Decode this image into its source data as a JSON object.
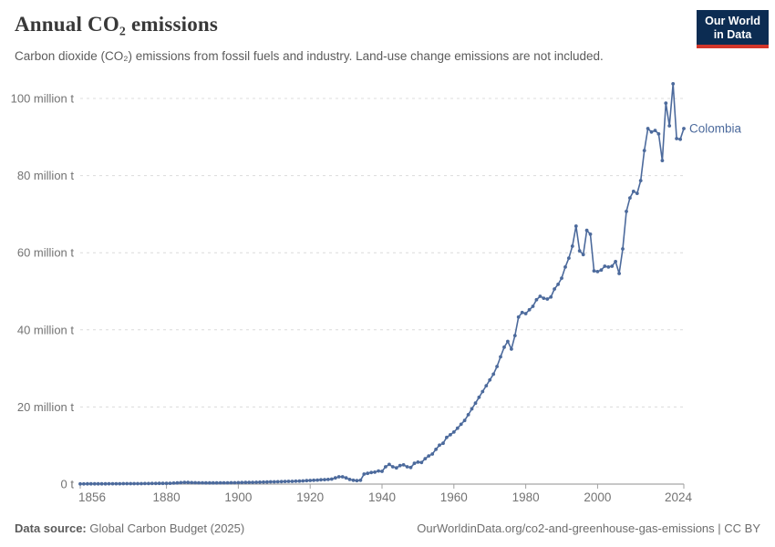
{
  "header": {
    "title": "Annual CO₂ emissions",
    "subtitle": "Carbon dioxide (CO₂) emissions from fossil fuels and industry. Land-use change emissions are not included."
  },
  "logo": {
    "line1": "Our World",
    "line2": "in Data",
    "bg_color": "#0C2C52",
    "accent_color": "#D2352A"
  },
  "footer": {
    "datasource_label": "Data source:",
    "datasource_value": "Global Carbon Budget (2025)",
    "citation": "OurWorldinData.org/co2-and-greenhouse-gas-emissions | CC BY"
  },
  "chart_data": {
    "type": "line",
    "title": "Annual CO₂ emissions",
    "series_label": "Colombia",
    "line_color": "#4C6A9C",
    "grid": "horizontal-dashed",
    "legend_position": "end-of-line",
    "x_range": [
      1856,
      2024
    ],
    "y_max": 100,
    "unit": "million tonnes CO₂",
    "yticks": [
      {
        "value": 0,
        "label": "0 t"
      },
      {
        "value": 20,
        "label": "20 million t"
      },
      {
        "value": 40,
        "label": "40 million t"
      },
      {
        "value": 60,
        "label": "60 million t"
      },
      {
        "value": 80,
        "label": "80 million t"
      },
      {
        "value": 100,
        "label": "100 million t"
      }
    ],
    "xticks": [
      1856,
      1880,
      1900,
      1920,
      1940,
      1960,
      1980,
      2000,
      2024
    ],
    "years_start": 1856,
    "years_step": 1,
    "values": [
      0.05,
      0.05,
      0.06,
      0.06,
      0.07,
      0.07,
      0.08,
      0.08,
      0.09,
      0.09,
      0.1,
      0.1,
      0.11,
      0.11,
      0.12,
      0.12,
      0.13,
      0.13,
      0.14,
      0.15,
      0.16,
      0.17,
      0.18,
      0.19,
      0.2,
      0.22,
      0.25,
      0.3,
      0.38,
      0.45,
      0.42,
      0.38,
      0.35,
      0.33,
      0.32,
      0.31,
      0.3,
      0.3,
      0.31,
      0.32,
      0.33,
      0.34,
      0.35,
      0.36,
      0.38,
      0.4,
      0.42,
      0.44,
      0.46,
      0.48,
      0.5,
      0.52,
      0.55,
      0.58,
      0.6,
      0.62,
      0.65,
      0.68,
      0.7,
      0.72,
      0.75,
      0.78,
      0.82,
      0.9,
      0.95,
      1.0,
      1.05,
      1.1,
      1.15,
      1.2,
      1.3,
      1.6,
      1.9,
      1.9,
      1.6,
      1.2,
      1.0,
      0.9,
      1.0,
      2.6,
      2.8,
      3.0,
      3.1,
      3.4,
      3.3,
      4.5,
      5.1,
      4.5,
      4.2,
      4.8,
      5.0,
      4.5,
      4.3,
      5.4,
      5.7,
      5.6,
      6.6,
      7.3,
      7.8,
      9.0,
      10.1,
      10.6,
      12.1,
      12.8,
      13.5,
      14.5,
      15.5,
      16.5,
      18.0,
      19.5,
      21.0,
      22.5,
      24.0,
      25.5,
      27.0,
      28.5,
      30.5,
      33.0,
      35.5,
      37.0,
      35.0,
      38.5,
      43.3,
      44.5,
      44.2,
      45.2,
      46.1,
      47.8,
      48.7,
      48.2,
      48.0,
      48.5,
      50.6,
      51.8,
      53.4,
      56.3,
      58.6,
      61.7,
      66.9,
      60.5,
      59.5,
      65.8,
      64.8,
      55.3,
      55.1,
      55.5,
      56.5,
      56.3,
      56.5,
      57.7,
      54.6,
      61.0,
      70.7,
      74.2,
      75.9,
      75.4,
      78.7,
      86.5,
      92.2,
      91.3,
      91.7,
      90.8,
      83.9,
      98.8,
      92.9,
      103.8,
      89.6,
      89.4,
      92.2
    ]
  }
}
